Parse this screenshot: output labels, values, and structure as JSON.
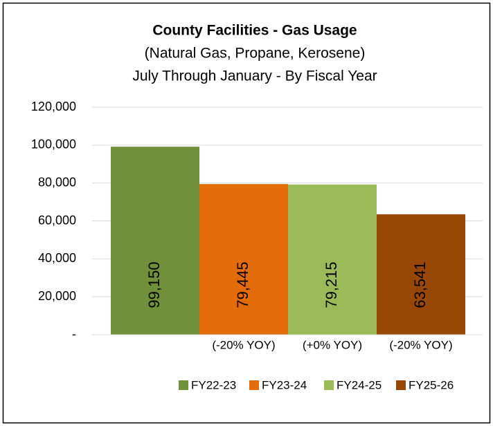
{
  "chart_data": {
    "type": "bar",
    "title": "County Facilities - Gas Usage",
    "subtitle": [
      "(Natural Gas, Propane, Kerosene)",
      "July Through January - By Fiscal Year"
    ],
    "categories": [
      null,
      "(-20% YOY)",
      "(+0% YOY)",
      "(-20% YOY)"
    ],
    "legend": [
      "FY22-23",
      "FY23-24",
      "FY24-25",
      "FY25-26"
    ],
    "values": [
      99150,
      79445,
      79215,
      63541
    ],
    "value_labels": [
      "99,150",
      "79,445",
      "79,215",
      "63,541"
    ],
    "colors": [
      "#70913a",
      "#e36c0a",
      "#9bbb59",
      "#974806"
    ],
    "ylim": [
      0,
      120000
    ],
    "yticks": [
      {
        "value": 0,
        "label": "-"
      },
      {
        "value": 20000,
        "label": "20,000"
      },
      {
        "value": 40000,
        "label": "40,000"
      },
      {
        "value": 60000,
        "label": "60,000"
      },
      {
        "value": 80000,
        "label": "80,000"
      },
      {
        "value": 100000,
        "label": "100,000"
      },
      {
        "value": 120000,
        "label": "120,000"
      }
    ],
    "grid": true,
    "legend_position": "bottom"
  }
}
